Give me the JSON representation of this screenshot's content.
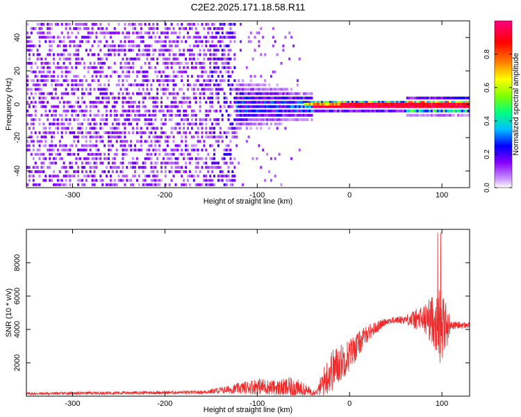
{
  "title": "C2E2.2025.171.18.58.R11",
  "chart_data": [
    {
      "type": "heatmap",
      "xlabel": "Height of straight line (km)",
      "ylabel": "Frequency (Hz)",
      "xlim": [
        -350,
        130
      ],
      "ylim": [
        -50,
        50
      ],
      "xticks": [
        -300,
        -200,
        -100,
        0,
        100
      ],
      "yticks": [
        -40,
        -20,
        0,
        20,
        40
      ],
      "colorbar": {
        "label": "Normalized spectral amplitude",
        "range": [
          0,
          1
        ],
        "ticks": [
          0.0,
          0.2,
          0.4,
          0.6,
          0.8
        ],
        "colormap": [
          "#ffffff",
          "#cc99ff",
          "#8800ff",
          "#0000ff",
          "#00c0ff",
          "#00ff80",
          "#80ff00",
          "#ffff00",
          "#ff8000",
          "#ff0000",
          "#ff0080"
        ]
      },
      "description_regions": [
        {
          "x_range": [
            -350,
            -150
          ],
          "freq_spread": 50,
          "amplitude": 0.12
        },
        {
          "x_range": [
            -150,
            -55
          ],
          "freq_spread": 12,
          "amplitude": 0.3
        },
        {
          "x_range": [
            -55,
            130
          ],
          "freq_spread": 3,
          "amplitude": 0.85
        }
      ]
    },
    {
      "type": "line",
      "xlabel": "Height of straight line (km)",
      "ylabel": "SNR (10 * v/v)",
      "xlim": [
        -350,
        130
      ],
      "ylim": [
        0,
        10000
      ],
      "xticks": [
        -300,
        -200,
        -100,
        0,
        100
      ],
      "yticks": [
        2000,
        4000,
        6000,
        8000
      ],
      "color": "#ee2a2a",
      "envelope": {
        "x": [
          -350,
          -250,
          -160,
          -130,
          -100,
          -80,
          -60,
          -45,
          -35,
          -30,
          -20,
          0,
          20,
          40,
          60,
          80,
          90,
          100,
          110,
          130
        ],
        "base": [
          150,
          200,
          230,
          400,
          600,
          500,
          500,
          300,
          250,
          700,
          1500,
          2500,
          3800,
          4500,
          4600,
          4600,
          4600,
          4200,
          4250,
          4250
        ],
        "noise": [
          80,
          90,
          100,
          250,
          500,
          450,
          700,
          300,
          150,
          800,
          1300,
          1000,
          500,
          200,
          250,
          900,
          1500,
          2500,
          250,
          200
        ]
      }
    }
  ]
}
